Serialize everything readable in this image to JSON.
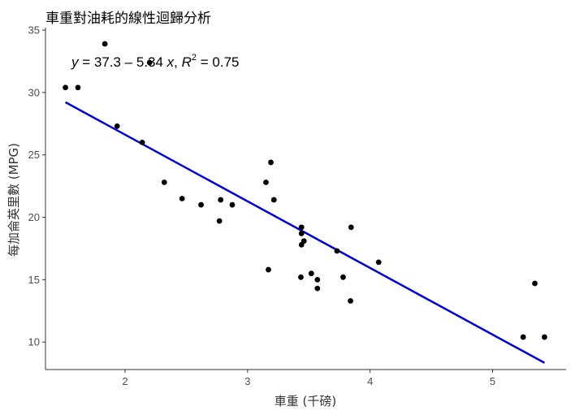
{
  "chart_data": {
    "type": "scatter",
    "title": "車重對油耗的線性迴歸分析",
    "xlabel": "車重 (千磅)",
    "ylabel": "每加侖英里數 (MPG)",
    "xlim": [
      1.35,
      5.6
    ],
    "ylim": [
      7.8,
      35.2
    ],
    "x_ticks": [
      2,
      3,
      4,
      5
    ],
    "y_ticks": [
      10,
      15,
      20,
      25,
      30,
      35
    ],
    "grid": false,
    "legend": "none",
    "point_color": "#000000",
    "line_color": "#0000CC",
    "points": [
      {
        "x": 2.62,
        "y": 21.0
      },
      {
        "x": 2.875,
        "y": 21.0
      },
      {
        "x": 2.32,
        "y": 22.8
      },
      {
        "x": 3.215,
        "y": 21.4
      },
      {
        "x": 3.44,
        "y": 18.7
      },
      {
        "x": 3.46,
        "y": 18.1
      },
      {
        "x": 3.57,
        "y": 14.3
      },
      {
        "x": 3.19,
        "y": 24.4
      },
      {
        "x": 3.15,
        "y": 22.8
      },
      {
        "x": 3.44,
        "y": 19.2
      },
      {
        "x": 3.44,
        "y": 17.8
      },
      {
        "x": 4.07,
        "y": 16.4
      },
      {
        "x": 3.73,
        "y": 17.3
      },
      {
        "x": 3.78,
        "y": 15.2
      },
      {
        "x": 5.25,
        "y": 10.4
      },
      {
        "x": 5.424,
        "y": 10.4
      },
      {
        "x": 5.345,
        "y": 14.7
      },
      {
        "x": 2.2,
        "y": 32.4
      },
      {
        "x": 1.615,
        "y": 30.4
      },
      {
        "x": 1.835,
        "y": 33.9
      },
      {
        "x": 2.465,
        "y": 21.5
      },
      {
        "x": 3.52,
        "y": 15.5
      },
      {
        "x": 3.435,
        "y": 15.2
      },
      {
        "x": 3.84,
        "y": 13.3
      },
      {
        "x": 3.845,
        "y": 19.2
      },
      {
        "x": 1.935,
        "y": 27.3
      },
      {
        "x": 2.14,
        "y": 26.0
      },
      {
        "x": 1.513,
        "y": 30.4
      },
      {
        "x": 3.17,
        "y": 15.8
      },
      {
        "x": 2.77,
        "y": 19.7
      },
      {
        "x": 3.57,
        "y": 15.0
      },
      {
        "x": 2.78,
        "y": 21.4
      }
    ],
    "regression": {
      "intercept": 37.3,
      "slope": -5.34,
      "r2": 0.75,
      "x_range": [
        1.513,
        5.424
      ]
    },
    "annotation": {
      "y_var": "y",
      "eq_mid": " = 37.3 – 5.34 ",
      "x_var": "x",
      "sep": ", ",
      "r_var": "R",
      "r_exp": "2",
      "r2_text": " = 0.75"
    }
  }
}
